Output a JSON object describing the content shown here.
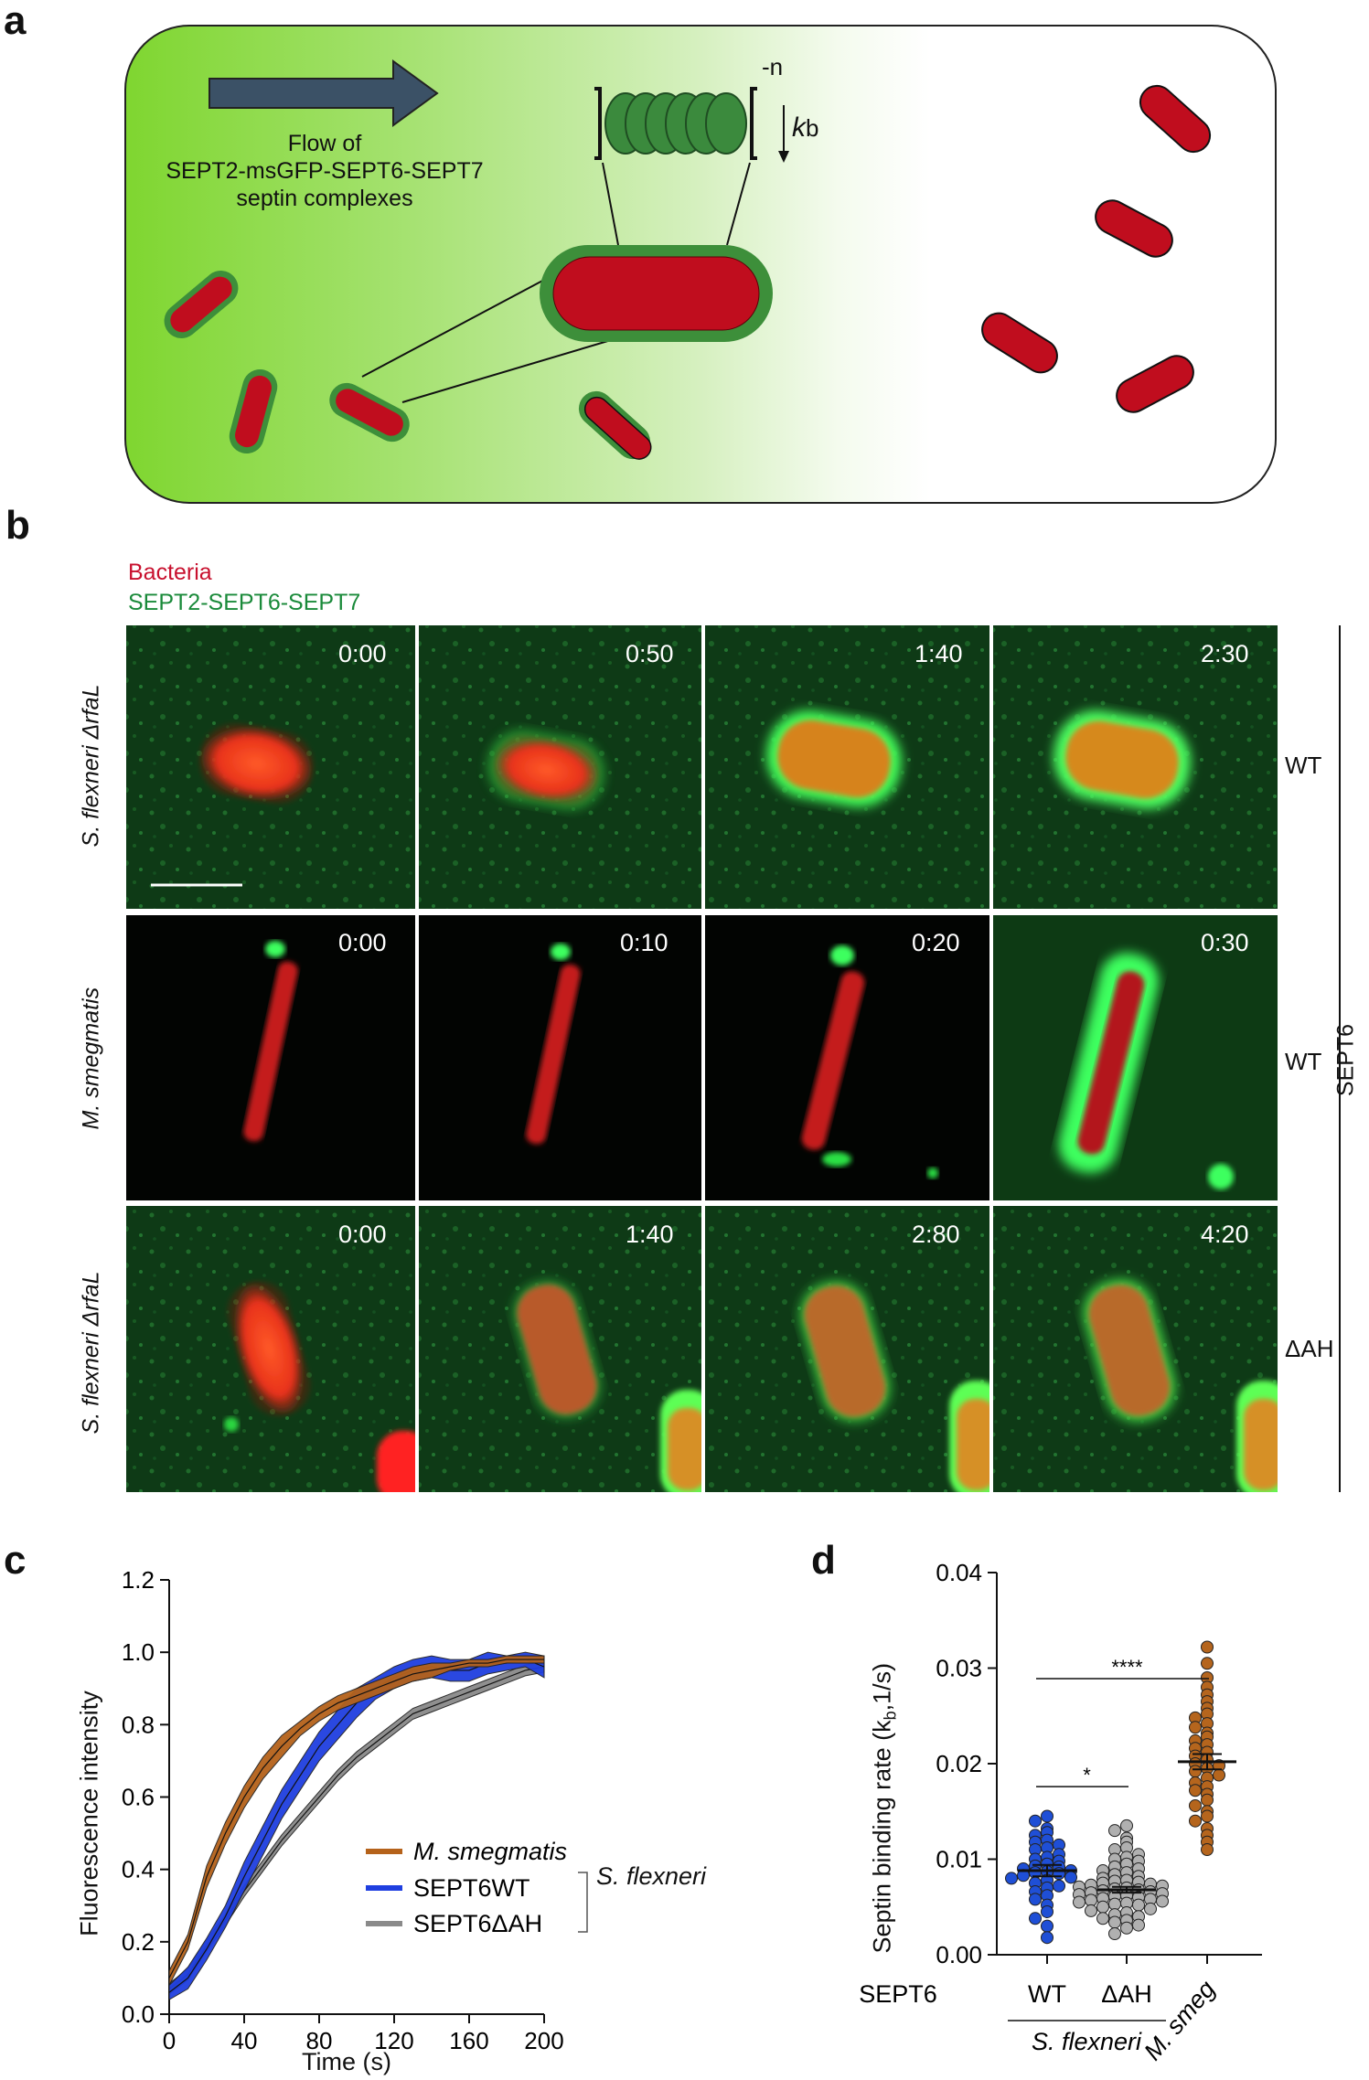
{
  "panels": {
    "a": "a",
    "b": "b",
    "c": "c",
    "d": "d"
  },
  "schematic": {
    "flow_line1": "Flow of",
    "flow_line2": "SEPT2-msGFP-SEPT6-SEPT7",
    "flow_line3": "septin complexes",
    "exponent": "-n",
    "rate_k": "k",
    "rate_sub": "b"
  },
  "legend_b": {
    "bacteria": "Bacteria",
    "septins": "SEPT2-SEPT6-SEPT7",
    "bacteria_color": "#c8102e",
    "septin_color": "#1a8a3a"
  },
  "rows": [
    {
      "strain_a": "S. flexneri",
      "strain_b": " ΔrfaL",
      "condition": "WT",
      "times": [
        "0:00",
        "0:50",
        "1:40",
        "2:30"
      ]
    },
    {
      "strain_a": "M. smegmatis",
      "strain_b": "",
      "condition": "WT",
      "times": [
        "0:00",
        "0:10",
        "0:20",
        "0:30"
      ]
    },
    {
      "strain_a": "S. flexneri",
      "strain_b": " ΔrfaL",
      "condition": "ΔAH",
      "times": [
        "0:00",
        "1:40",
        "2:80",
        "4:20"
      ]
    }
  ],
  "sept6_label": "SEPT6",
  "chart_data": [
    {
      "type": "line",
      "xlabel": "Time (s)",
      "ylabel": "Fluorescence intensity",
      "xlim": [
        0,
        200
      ],
      "ylim": [
        0,
        1.2
      ],
      "xticks": [
        "0",
        "40",
        "80",
        "120",
        "160",
        "200"
      ],
      "yticks": [
        "0.0",
        "0.2",
        "0.4",
        "0.6",
        "0.8",
        "1.0",
        "1.2"
      ],
      "x": [
        0,
        10,
        20,
        30,
        40,
        50,
        60,
        70,
        80,
        90,
        100,
        110,
        120,
        130,
        140,
        150,
        160,
        170,
        180,
        190,
        200
      ],
      "series": [
        {
          "name": "M. smegmatis",
          "color": "#b5621a",
          "values": [
            0.1,
            0.2,
            0.38,
            0.5,
            0.6,
            0.68,
            0.74,
            0.79,
            0.83,
            0.86,
            0.88,
            0.9,
            0.92,
            0.94,
            0.95,
            0.96,
            0.97,
            0.97,
            0.98,
            0.98,
            0.98
          ],
          "band": [
            0.02,
            0.02,
            0.03,
            0.03,
            0.03,
            0.03,
            0.03,
            0.02,
            0.02,
            0.02,
            0.02,
            0.02,
            0.02,
            0.02,
            0.02,
            0.01,
            0.01,
            0.01,
            0.01,
            0.01,
            0.01
          ]
        },
        {
          "name": "SEPT6WT",
          "color": "#1f3fe0",
          "values": [
            0.06,
            0.1,
            0.18,
            0.27,
            0.38,
            0.48,
            0.58,
            0.66,
            0.74,
            0.8,
            0.86,
            0.9,
            0.93,
            0.95,
            0.96,
            0.95,
            0.95,
            0.97,
            0.97,
            0.98,
            0.96
          ],
          "band": [
            0.02,
            0.03,
            0.03,
            0.03,
            0.04,
            0.04,
            0.04,
            0.04,
            0.04,
            0.04,
            0.04,
            0.03,
            0.03,
            0.03,
            0.03,
            0.03,
            0.03,
            0.03,
            0.02,
            0.02,
            0.03
          ]
        },
        {
          "name": "SEPT6ΔAH",
          "color": "#8a8a8a",
          "values": [
            0.07,
            0.11,
            0.19,
            0.26,
            0.34,
            0.41,
            0.48,
            0.54,
            0.6,
            0.66,
            0.71,
            0.75,
            0.79,
            0.83,
            0.85,
            0.87,
            0.89,
            0.91,
            0.93,
            0.95,
            0.96
          ],
          "band": [
            0.015,
            0.015,
            0.015,
            0.015,
            0.015,
            0.015,
            0.015,
            0.015,
            0.015,
            0.015,
            0.015,
            0.015,
            0.015,
            0.015,
            0.015,
            0.015,
            0.015,
            0.015,
            0.015,
            0.015,
            0.015
          ]
        }
      ],
      "legend_bracket_label": "S. flexneri"
    },
    {
      "type": "scatter",
      "ylabel": "Septin binding rate (k",
      "ylabel_sub": "b",
      "ylabel_tail": ",1/s)",
      "ylim": [
        0,
        0.04
      ],
      "yticks": [
        "0.00",
        "0.01",
        "0.02",
        "0.03",
        "0.04"
      ],
      "row_label": "SEPT6",
      "categories": [
        "WT",
        "ΔAH",
        "M. smeg"
      ],
      "group_label": "S. flexneri",
      "sig": [
        {
          "from": 0,
          "to": 1,
          "label": "*"
        },
        {
          "from": 0,
          "to": 2,
          "label": "****"
        }
      ],
      "groups": [
        {
          "name": "WT",
          "color": "#1f4fd6",
          "mean": 0.0088,
          "sem": 0.0006,
          "values": [
            0.0145,
            0.014,
            0.0132,
            0.0128,
            0.0125,
            0.012,
            0.0118,
            0.0115,
            0.0112,
            0.011,
            0.0105,
            0.0102,
            0.01,
            0.0098,
            0.0095,
            0.0093,
            0.0092,
            0.009,
            0.0088,
            0.0087,
            0.0086,
            0.0085,
            0.0083,
            0.0081,
            0.008,
            0.0078,
            0.0075,
            0.0072,
            0.007,
            0.0066,
            0.0062,
            0.0058,
            0.0052,
            0.0045,
            0.0038,
            0.003,
            0.0018
          ]
        },
        {
          "name": "ΔAH",
          "color": "#b0b0b0",
          "mean": 0.0068,
          "sem": 0.0003,
          "values": [
            0.0135,
            0.013,
            0.0122,
            0.0118,
            0.0112,
            0.011,
            0.0105,
            0.0102,
            0.01,
            0.0098,
            0.0095,
            0.0092,
            0.009,
            0.0088,
            0.0086,
            0.0084,
            0.0082,
            0.008,
            0.0078,
            0.0077,
            0.0076,
            0.0075,
            0.0074,
            0.0073,
            0.0072,
            0.0071,
            0.007,
            0.0069,
            0.0068,
            0.0067,
            0.0066,
            0.0065,
            0.0064,
            0.0063,
            0.0062,
            0.0061,
            0.006,
            0.0059,
            0.0058,
            0.0057,
            0.0056,
            0.0055,
            0.0054,
            0.0053,
            0.0052,
            0.005,
            0.0048,
            0.0046,
            0.0044,
            0.0042,
            0.004,
            0.0038,
            0.0036,
            0.0034,
            0.0031,
            0.0028,
            0.0022
          ]
        },
        {
          "name": "M. smeg",
          "color": "#b5651d",
          "mean": 0.0202,
          "sem": 0.0008,
          "values": [
            0.0322,
            0.0305,
            0.029,
            0.028,
            0.0272,
            0.0265,
            0.0258,
            0.0252,
            0.0248,
            0.0242,
            0.0238,
            0.0232,
            0.0228,
            0.0224,
            0.022,
            0.0216,
            0.0212,
            0.0208,
            0.0204,
            0.02,
            0.0198,
            0.0195,
            0.0192,
            0.0188,
            0.0185,
            0.018,
            0.0176,
            0.0172,
            0.0168,
            0.0162,
            0.0156,
            0.015,
            0.0145,
            0.014,
            0.0132,
            0.0125,
            0.0118,
            0.011
          ]
        }
      ]
    }
  ]
}
